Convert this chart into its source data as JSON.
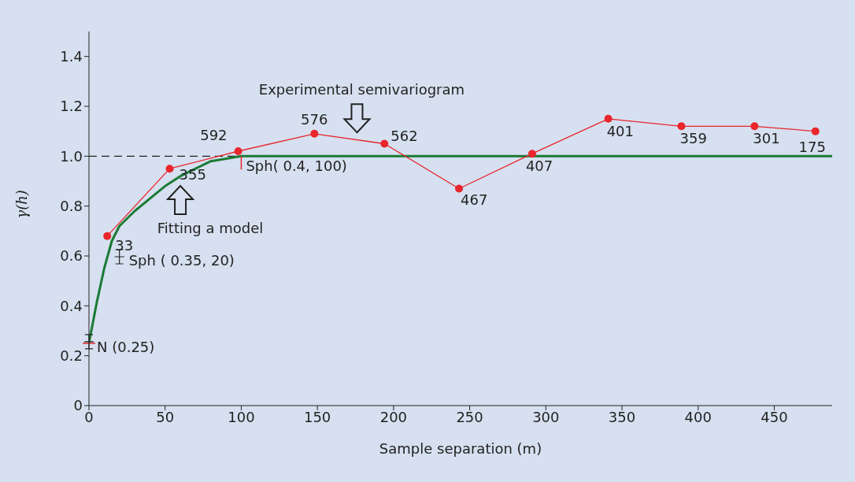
{
  "chart_data": {
    "type": "line",
    "xlabel": "Sample separation (m)",
    "ylabel": "γ(h)",
    "xlim": [
      0,
      488
    ],
    "xticks": [
      0,
      50,
      100,
      150,
      200,
      250,
      300,
      350,
      400,
      450
    ],
    "ylim": [
      0,
      1.5
    ],
    "yticks": [
      0,
      0.2,
      0.4,
      0.6,
      0.8,
      {
        "value": 1,
        "label": "1.0"
      },
      1.2,
      1.4
    ],
    "series": [
      {
        "type": "line",
        "color": "#e8262c",
        "marker": "circle",
        "x": [
          12,
          53,
          98,
          148,
          194,
          243,
          291,
          341,
          389,
          437,
          477
        ],
        "values": [
          0.68,
          0.95,
          1.02,
          1.09,
          1.05,
          0.87,
          1.01,
          1.15,
          1.12,
          1.12,
          1.1
        ]
      },
      {
        "type": "line",
        "color": "#1a7a35",
        "marker": "none",
        "x": [
          0,
          5,
          10,
          15,
          20,
          30,
          40,
          50,
          60,
          70,
          80,
          90,
          100,
          488
        ],
        "values": [
          0.25,
          0.41,
          0.55,
          0.66,
          0.72,
          0.78,
          0.83,
          0.88,
          0.92,
          0.95,
          0.98,
          0.99,
          1.0,
          1.0
        ]
      }
    ],
    "ref_lines": [
      {
        "axis": "y",
        "value": 1.0,
        "color": "#222222",
        "line_style": "dashed"
      }
    ],
    "annotations": [
      {
        "text": "Experimental semivariogram",
        "x": 176,
        "y": 1.07
      },
      {
        "text": "Fitting a model",
        "x": 60,
        "y": 0.9
      },
      "Sph ( 0.35, 20)",
      {
        "text": "Sph( 0.4, 100)",
        "x": 100,
        "y": 1.0
      },
      {
        "text": "N (0.25)",
        "x": 0,
        "y": 0.25
      },
      {
        "text": "33",
        "x": 12,
        "y": 0.68
      },
      {
        "text": "355",
        "x": 53,
        "y": 0.95
      },
      {
        "text": "592",
        "x": 98,
        "y": 1.02
      },
      {
        "text": "576",
        "x": 148,
        "y": 1.09
      },
      {
        "text": "562",
        "x": 194,
        "y": 1.05
      },
      {
        "text": "467",
        "x": 243,
        "y": 0.87
      },
      {
        "text": "407",
        "x": 291,
        "y": 1.01
      },
      {
        "text": "401",
        "x": 341,
        "y": 1.15
      },
      {
        "text": "359",
        "x": 389,
        "y": 1.12
      },
      {
        "text": "301",
        "x": 437,
        "y": 1.12
      },
      {
        "text": "175",
        "x": 477,
        "y": 1.1
      }
    ]
  }
}
